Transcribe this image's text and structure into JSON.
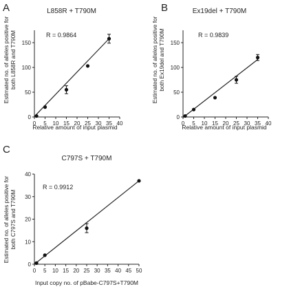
{
  "chart_data": [
    {
      "panel_label": "A",
      "type": "scatter",
      "title": "L858R + T790M",
      "annotation": "R = 0.9864",
      "ylabel_lines": [
        "Estimated no. of alleles positive for",
        "both L858R and T790M"
      ],
      "xlabel": "Relative amount of input plasmid",
      "xlim": [
        0,
        40
      ],
      "ylim": [
        0,
        175
      ],
      "xticks": [
        0,
        5,
        10,
        15,
        20,
        25,
        30,
        35,
        40
      ],
      "yticks": [
        0,
        50,
        100,
        150
      ],
      "points": [
        {
          "x": 1,
          "y": 2,
          "err": 0
        },
        {
          "x": 5,
          "y": 20,
          "err": 0
        },
        {
          "x": 15,
          "y": 55,
          "err": 8
        },
        {
          "x": 25,
          "y": 103,
          "err": 0
        },
        {
          "x": 35,
          "y": 158,
          "err": 9
        }
      ],
      "fit_line": {
        "x": [
          0,
          35
        ],
        "y": [
          1,
          158
        ]
      }
    },
    {
      "panel_label": "B",
      "type": "scatter",
      "title": "Ex19del + T790M",
      "annotation": "R = 0.9839",
      "ylabel_lines": [
        "Estimated no. of alleles positive for",
        "both Ex19del and T790M"
      ],
      "xlabel": "Relative amount of input plasmid",
      "xlim": [
        0,
        40
      ],
      "ylim": [
        0,
        175
      ],
      "xticks": [
        0,
        5,
        10,
        15,
        20,
        25,
        30,
        35,
        40
      ],
      "yticks": [
        0,
        50,
        100,
        150
      ],
      "points": [
        {
          "x": 1,
          "y": 2,
          "err": 0
        },
        {
          "x": 5,
          "y": 15,
          "err": 0
        },
        {
          "x": 15,
          "y": 39,
          "err": 0
        },
        {
          "x": 25,
          "y": 75,
          "err": 7
        },
        {
          "x": 35,
          "y": 120,
          "err": 6
        }
      ],
      "fit_line": {
        "x": [
          0,
          35
        ],
        "y": [
          -1,
          116
        ]
      }
    },
    {
      "panel_label": "C",
      "type": "scatter",
      "title": "C797S + T790M",
      "annotation": "R = 0.9912",
      "ylabel_lines": [
        "Estimated no. of alleles positive for",
        "both C797S and T790M"
      ],
      "xlabel": "Input copy no. of pBabe-C797S+T790M",
      "xlim": [
        0,
        50
      ],
      "ylim": [
        0,
        40
      ],
      "xticks": [
        0,
        5,
        10,
        15,
        20,
        25,
        30,
        35,
        40,
        45,
        50
      ],
      "yticks": [
        0,
        10,
        20,
        30,
        40
      ],
      "points": [
        {
          "x": 1,
          "y": 0.5,
          "err": 0
        },
        {
          "x": 5,
          "y": 4,
          "err": 0
        },
        {
          "x": 25,
          "y": 16,
          "err": 2
        },
        {
          "x": 50,
          "y": 37,
          "err": 0
        }
      ],
      "fit_line": {
        "x": [
          0,
          50
        ],
        "y": [
          0,
          37
        ]
      }
    }
  ],
  "style": {
    "axis_color": "#222222",
    "point_color": "#111111",
    "line_color": "#222222"
  }
}
